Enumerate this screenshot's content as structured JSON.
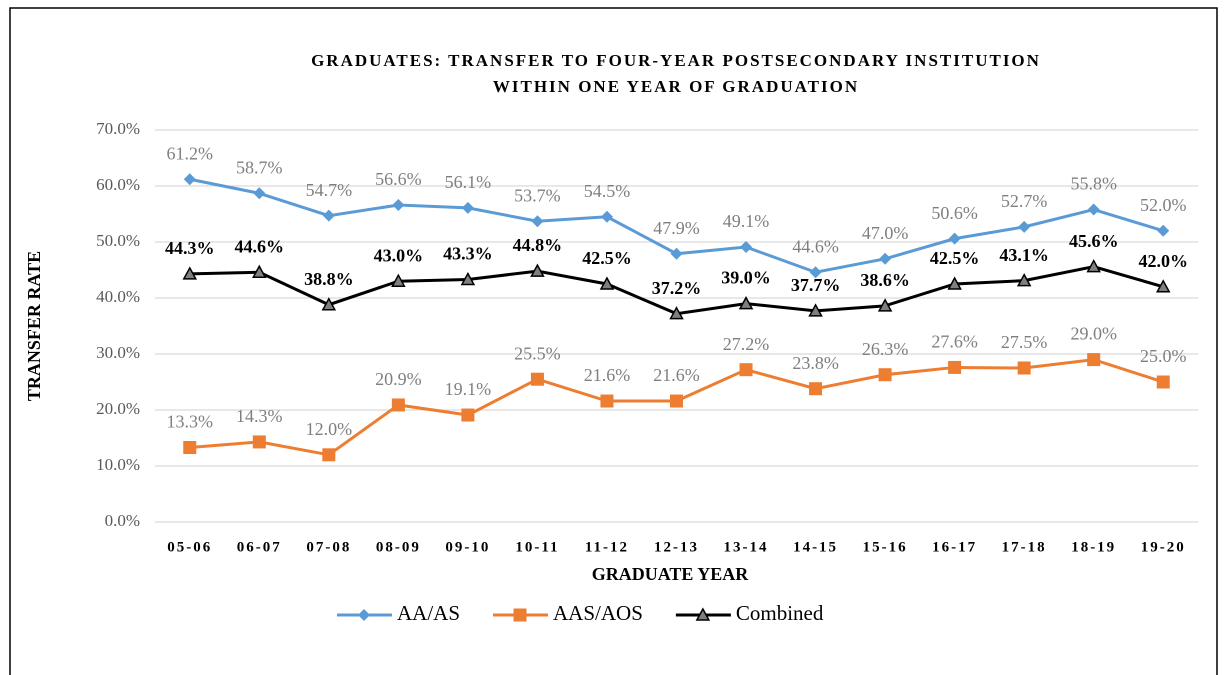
{
  "chart_data": {
    "type": "line",
    "title": [
      "GRADUATES: TRANSFER TO FOUR-YEAR POSTSECONDARY INSTITUTION",
      "WITHIN ONE YEAR OF GRADUATION"
    ],
    "x_label": "GRADUATE YEAR",
    "y_label": "TRANSFER RATE",
    "categories": [
      "05-06",
      "06-07",
      "07-08",
      "08-09",
      "09-10",
      "10-11",
      "11-12",
      "12-13",
      "13-14",
      "14-15",
      "15-16",
      "16-17",
      "17-18",
      "18-19",
      "19-20"
    ],
    "series": [
      {
        "name": "AA/AS",
        "color": "#5b9bd5",
        "marker": "diamond",
        "label_color": "#7f7f7f",
        "label_bold": false,
        "values": [
          61.2,
          58.7,
          54.7,
          56.6,
          56.1,
          53.7,
          54.5,
          47.9,
          49.1,
          44.6,
          47.0,
          50.6,
          52.7,
          55.8,
          52.0
        ],
        "value_labels": [
          "61.2%",
          "58.7%",
          "54.7%",
          "56.6%",
          "56.1%",
          "53.7%",
          "54.5%",
          "47.9%",
          "49.1%",
          "44.6%",
          "47.0%",
          "50.6%",
          "52.7%",
          "55.8%",
          "52.0%"
        ]
      },
      {
        "name": "AAS/AOS",
        "color": "#ed7d31",
        "marker": "square",
        "label_color": "#7f7f7f",
        "label_bold": false,
        "values": [
          13.3,
          14.3,
          12.0,
          20.9,
          19.1,
          25.5,
          21.6,
          21.6,
          27.2,
          23.8,
          26.3,
          27.6,
          27.5,
          29.0,
          25.0
        ],
        "value_labels": [
          "13.3%",
          "14.3%",
          "12.0%",
          "20.9%",
          "19.1%",
          "25.5%",
          "21.6%",
          "21.6%",
          "27.2%",
          "23.8%",
          "26.3%",
          "27.6%",
          "27.5%",
          "29.0%",
          "25.0%"
        ]
      },
      {
        "name": "Combined",
        "color": "#000000",
        "marker": "triangle",
        "label_color": "#000000",
        "label_bold": true,
        "values": [
          44.3,
          44.6,
          38.8,
          43.0,
          43.3,
          44.8,
          42.5,
          37.2,
          39.0,
          37.7,
          38.6,
          42.5,
          43.1,
          45.6,
          42.0
        ],
        "value_labels": [
          "44.3%",
          "44.6%",
          "38.8%",
          "43.0%",
          "43.3%",
          "44.8%",
          "42.5%",
          "37.2%",
          "39.0%",
          "37.7%",
          "38.6%",
          "42.5%",
          "43.1%",
          "45.6%",
          "42.0%"
        ]
      }
    ],
    "ylim": [
      0,
      70
    ],
    "yticks": [
      {
        "value": 0,
        "label": "0.0%"
      },
      {
        "value": 10,
        "label": "10.0%"
      },
      {
        "value": 20,
        "label": "20.0%"
      },
      {
        "value": 30,
        "label": "30.0%"
      },
      {
        "value": 40,
        "label": "40.0%"
      },
      {
        "value": 50,
        "label": "50.0%"
      },
      {
        "value": 60,
        "label": "60.0%"
      },
      {
        "value": 70,
        "label": "70.0%"
      }
    ],
    "grid": true,
    "legend": "bottom"
  }
}
